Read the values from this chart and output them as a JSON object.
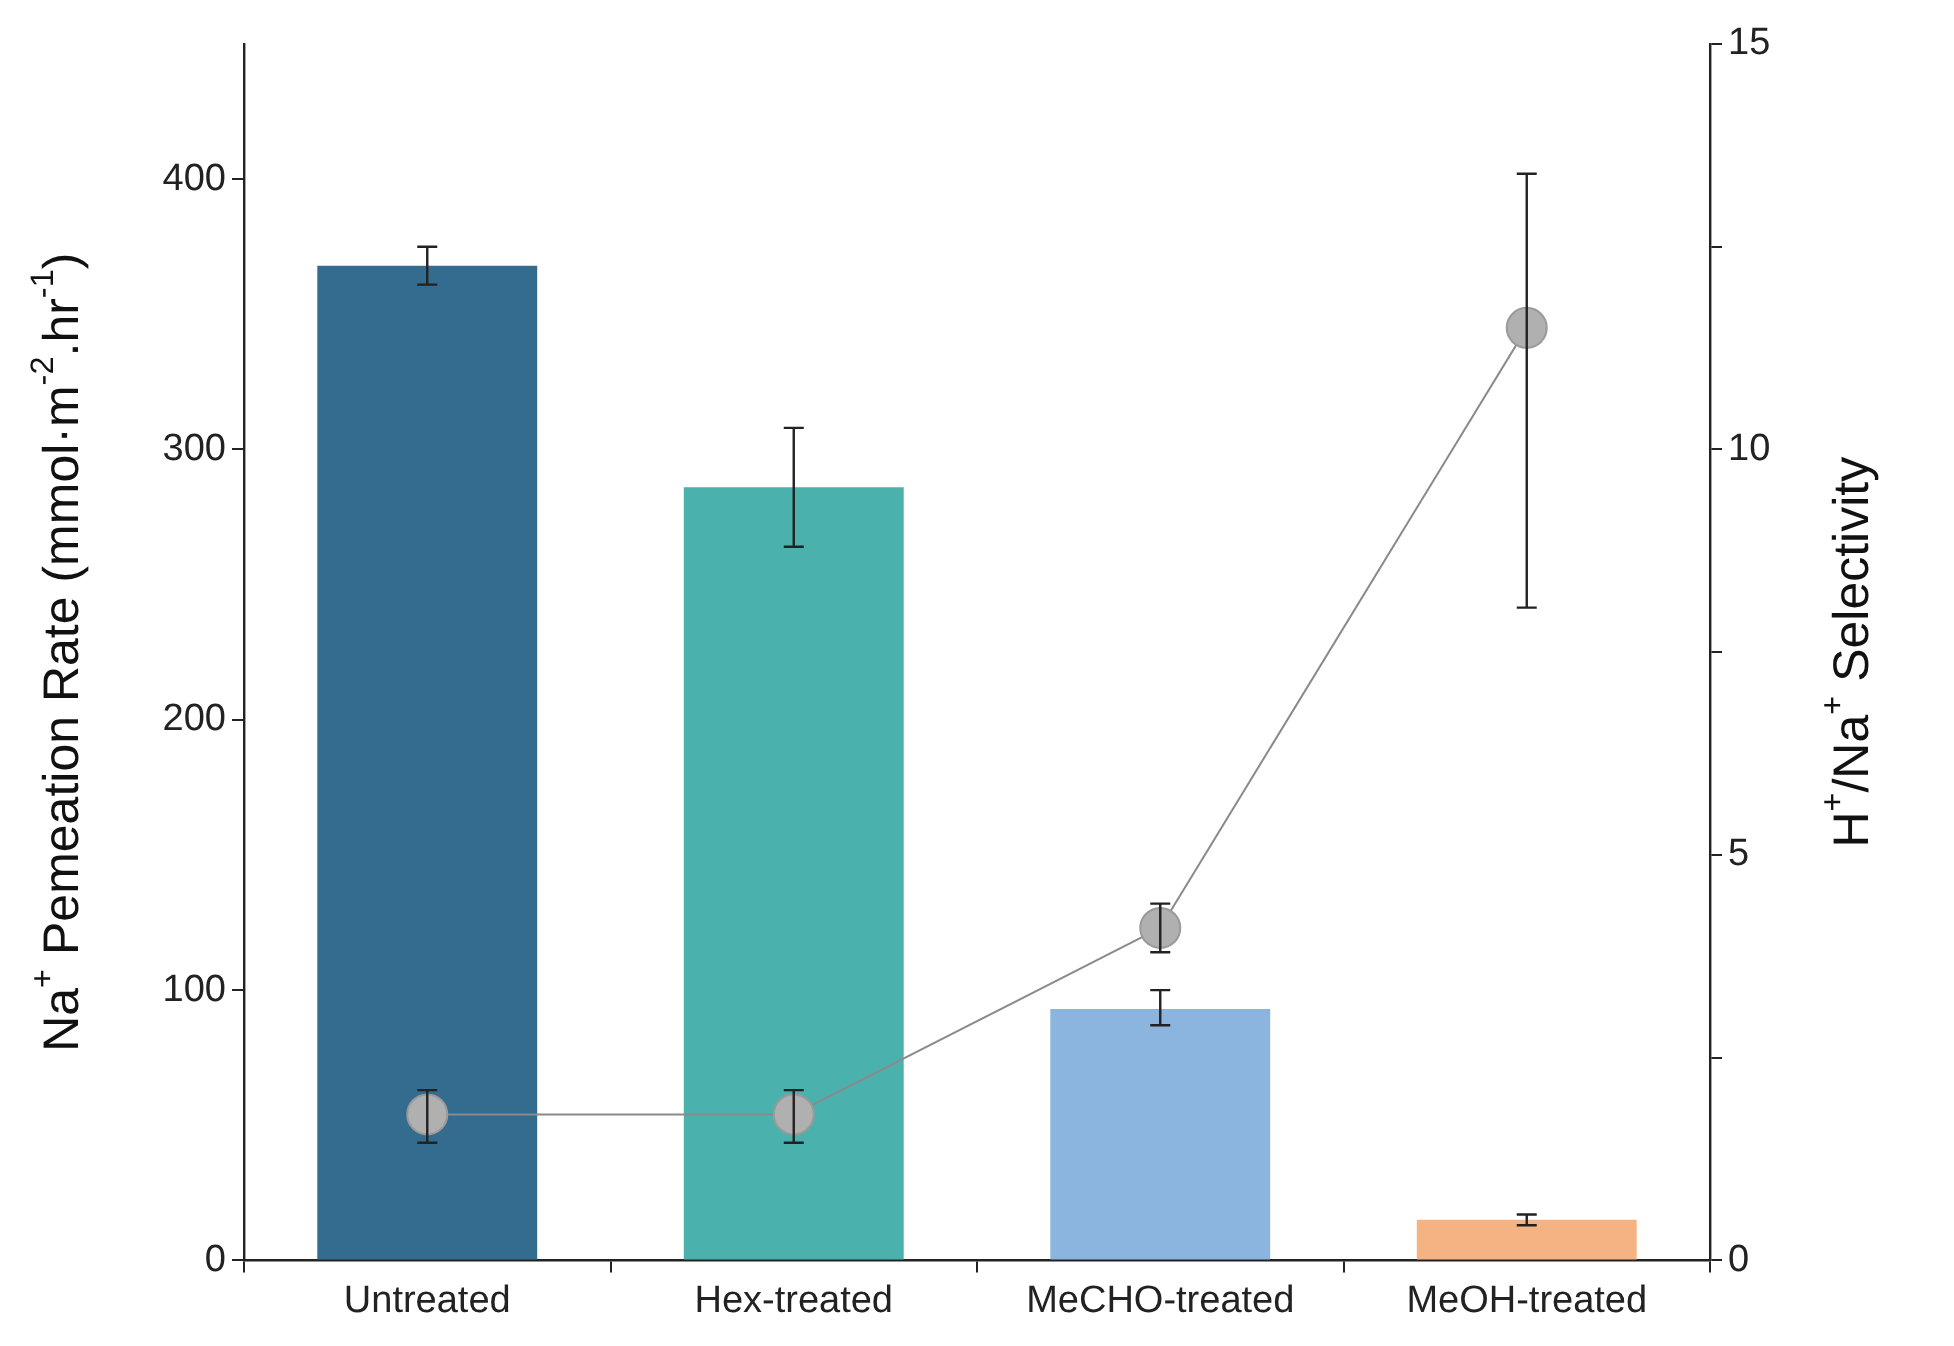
{
  "chart_data": {
    "type": "bar",
    "categories": [
      "Untreated",
      "Hex-treated",
      "MeCHO-treated",
      "MeOH-treated"
    ],
    "ylabel": "Na$^{+}$ Pemeation Rate (mmol·m$^{-2}$.hr$^{-1}$)",
    "y2label": "H$^{+}$/Na$^{+}$ Selectivity",
    "ylim": [
      0,
      450
    ],
    "yticks": [
      0,
      100,
      200,
      300,
      400
    ],
    "y2lim": [
      0,
      15
    ],
    "y2ticks": [
      0,
      {
        "value": 2.5,
        "label": null
      },
      5,
      {
        "value": 7.5,
        "label": null
      },
      10,
      {
        "value": 12.5,
        "label": null
      },
      15
    ],
    "grid": false,
    "legend": false,
    "series": [
      {
        "colors": [
          "#336c8f",
          "#4bb1ac",
          "#8bb5de",
          "#f5b383"
        ],
        "values": [
          368,
          286,
          93,
          15
        ],
        "errors": [
          [
            361,
            375
          ],
          [
            264,
            308
          ],
          [
            87,
            100
          ],
          [
            13,
            17
          ]
        ]
      },
      {
        "type": "line",
        "axis": "y2",
        "color": "#8a8a8a",
        "marker": "circle",
        "line_style": "solid",
        "values": [
          1.8,
          1.8,
          4.1,
          11.5
        ],
        "errors": [
          [
            1.45,
            2.1
          ],
          [
            1.45,
            2.1
          ],
          [
            3.8,
            4.4
          ],
          [
            8.05,
            13.4
          ]
        ]
      }
    ]
  }
}
